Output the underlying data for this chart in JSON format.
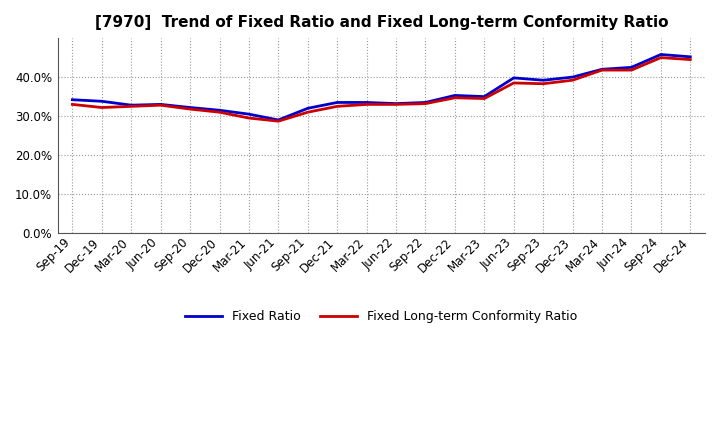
{
  "title": "[7970]  Trend of Fixed Ratio and Fixed Long-term Conformity Ratio",
  "x_labels": [
    "Sep-19",
    "Dec-19",
    "Mar-20",
    "Jun-20",
    "Sep-20",
    "Dec-20",
    "Mar-21",
    "Jun-21",
    "Sep-21",
    "Dec-21",
    "Mar-22",
    "Jun-22",
    "Sep-22",
    "Dec-22",
    "Mar-23",
    "Jun-23",
    "Sep-23",
    "Dec-23",
    "Mar-24",
    "Jun-24",
    "Sep-24",
    "Dec-24"
  ],
  "fixed_ratio": [
    34.2,
    33.8,
    32.8,
    33.0,
    32.2,
    31.5,
    30.5,
    29.0,
    32.0,
    33.5,
    33.5,
    33.2,
    33.5,
    35.3,
    35.0,
    39.8,
    39.2,
    40.0,
    42.0,
    42.5,
    45.8,
    45.2
  ],
  "fixed_lt_ratio": [
    33.0,
    32.2,
    32.5,
    32.8,
    31.8,
    31.0,
    29.5,
    28.7,
    31.0,
    32.5,
    33.0,
    33.0,
    33.2,
    34.7,
    34.5,
    38.5,
    38.3,
    39.2,
    41.8,
    41.8,
    45.0,
    44.5
  ],
  "fixed_ratio_color": "#0000cc",
  "fixed_lt_ratio_color": "#cc0000",
  "ylim": [
    0,
    50
  ],
  "yticks": [
    0,
    10,
    20,
    30,
    40
  ],
  "background_color": "#ffffff",
  "grid_color": "#999999",
  "legend_fixed_ratio": "Fixed Ratio",
  "legend_fixed_lt_ratio": "Fixed Long-term Conformity Ratio",
  "title_fontsize": 11,
  "tick_fontsize": 8.5,
  "legend_fontsize": 9
}
